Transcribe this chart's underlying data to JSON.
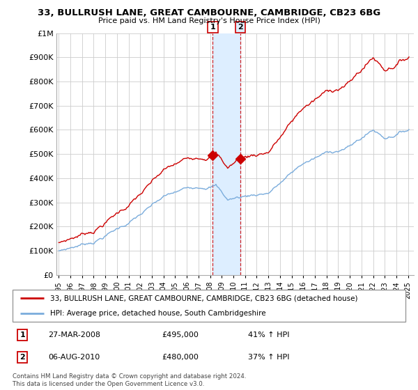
{
  "title": "33, BULLRUSH LANE, GREAT CAMBOURNE, CAMBRIDGE, CB23 6BG",
  "subtitle": "Price paid vs. HM Land Registry's House Price Index (HPI)",
  "hpi_label": "HPI: Average price, detached house, South Cambridgeshire",
  "property_label": "33, BULLRUSH LANE, GREAT CAMBOURNE, CAMBRIDGE, CB23 6BG (detached house)",
  "footnote": "Contains HM Land Registry data © Crown copyright and database right 2024.\nThis data is licensed under the Open Government Licence v3.0.",
  "transaction1_date": "27-MAR-2008",
  "transaction1_price": "£495,000",
  "transaction1_hpi": "41% ↑ HPI",
  "transaction2_date": "06-AUG-2010",
  "transaction2_price": "£480,000",
  "transaction2_hpi": "37% ↑ HPI",
  "property_color": "#cc0000",
  "hpi_color": "#7aacdc",
  "highlight_color": "#ddeeff",
  "marker1_x": 2008.23,
  "marker1_y": 495000,
  "marker2_x": 2010.59,
  "marker2_y": 480000,
  "ylim": [
    0,
    1000000
  ],
  "xlim": [
    1994.8,
    2025.5
  ],
  "yticks": [
    0,
    100000,
    200000,
    300000,
    400000,
    500000,
    600000,
    700000,
    800000,
    900000,
    1000000
  ],
  "ytick_labels": [
    "£0",
    "£100K",
    "£200K",
    "£300K",
    "£400K",
    "£500K",
    "£600K",
    "£700K",
    "£800K",
    "£900K",
    "£1M"
  ],
  "xticks": [
    1995,
    1996,
    1997,
    1998,
    1999,
    2000,
    2001,
    2002,
    2003,
    2004,
    2005,
    2006,
    2007,
    2008,
    2009,
    2010,
    2011,
    2012,
    2013,
    2014,
    2015,
    2016,
    2017,
    2018,
    2019,
    2020,
    2021,
    2022,
    2023,
    2024,
    2025
  ],
  "xtick_labels": [
    "1995",
    "1996",
    "1997",
    "1998",
    "1999",
    "2000",
    "2001",
    "2002",
    "2003",
    "2004",
    "2005",
    "2006",
    "2007",
    "2008",
    "2009",
    "2010",
    "2011",
    "2012",
    "2013",
    "2014",
    "2015",
    "2016",
    "2017",
    "2018",
    "2019",
    "2020",
    "2021",
    "2022",
    "2023",
    "2024",
    "2025"
  ]
}
